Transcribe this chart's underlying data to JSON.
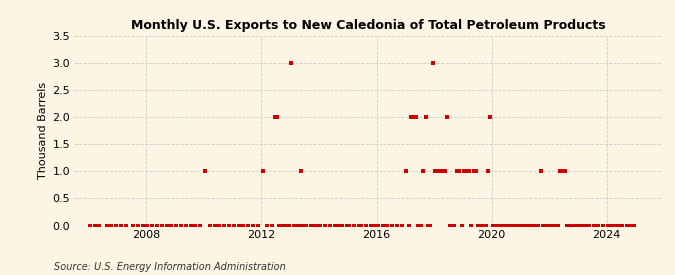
{
  "title": "Monthly U.S. Exports to New Caledonia of Total Petroleum Products",
  "ylabel": "Thousand Barrels",
  "source": "Source: U.S. Energy Information Administration",
  "ylim": [
    0,
    3.5
  ],
  "yticks": [
    0.0,
    0.5,
    1.0,
    1.5,
    2.0,
    2.5,
    3.0,
    3.5
  ],
  "xlim_start": 2005.5,
  "xlim_end": 2025.9,
  "xticks": [
    2008,
    2012,
    2016,
    2020,
    2024
  ],
  "marker_color": "#cc0000",
  "marker": "s",
  "markersize": 3.0,
  "background_color": "#fdf5e4",
  "grid_color": "#cccccc",
  "data_points": [
    [
      2006,
      1,
      0
    ],
    [
      2006,
      3,
      0
    ],
    [
      2006,
      5,
      0
    ],
    [
      2006,
      8,
      0
    ],
    [
      2006,
      10,
      0
    ],
    [
      2006,
      12,
      0
    ],
    [
      2007,
      2,
      0
    ],
    [
      2007,
      4,
      0
    ],
    [
      2007,
      7,
      0
    ],
    [
      2007,
      9,
      0
    ],
    [
      2007,
      11,
      0
    ],
    [
      2008,
      1,
      0
    ],
    [
      2008,
      3,
      0
    ],
    [
      2008,
      5,
      0
    ],
    [
      2008,
      7,
      0
    ],
    [
      2008,
      9,
      0
    ],
    [
      2008,
      11,
      0
    ],
    [
      2009,
      1,
      0
    ],
    [
      2009,
      3,
      0
    ],
    [
      2009,
      5,
      0
    ],
    [
      2009,
      7,
      0
    ],
    [
      2009,
      9,
      0
    ],
    [
      2009,
      11,
      0
    ],
    [
      2010,
      1,
      1
    ],
    [
      2010,
      3,
      0
    ],
    [
      2010,
      5,
      0
    ],
    [
      2010,
      7,
      0
    ],
    [
      2010,
      9,
      0
    ],
    [
      2010,
      11,
      0
    ],
    [
      2011,
      1,
      0
    ],
    [
      2011,
      3,
      0
    ],
    [
      2011,
      5,
      0
    ],
    [
      2011,
      7,
      0
    ],
    [
      2011,
      9,
      0
    ],
    [
      2011,
      11,
      0
    ],
    [
      2012,
      1,
      1
    ],
    [
      2012,
      3,
      0
    ],
    [
      2012,
      5,
      0
    ],
    [
      2012,
      6,
      2
    ],
    [
      2012,
      7,
      2
    ],
    [
      2012,
      8,
      0
    ],
    [
      2012,
      9,
      0
    ],
    [
      2012,
      10,
      0
    ],
    [
      2012,
      11,
      0
    ],
    [
      2012,
      12,
      0
    ],
    [
      2013,
      1,
      3
    ],
    [
      2013,
      2,
      0
    ],
    [
      2013,
      3,
      0
    ],
    [
      2013,
      4,
      0
    ],
    [
      2013,
      5,
      1
    ],
    [
      2013,
      6,
      0
    ],
    [
      2013,
      7,
      0
    ],
    [
      2013,
      9,
      0
    ],
    [
      2013,
      10,
      0
    ],
    [
      2013,
      11,
      0
    ],
    [
      2013,
      12,
      0
    ],
    [
      2014,
      1,
      0
    ],
    [
      2014,
      3,
      0
    ],
    [
      2014,
      5,
      0
    ],
    [
      2014,
      7,
      0
    ],
    [
      2014,
      9,
      0
    ],
    [
      2014,
      10,
      0
    ],
    [
      2014,
      12,
      0
    ],
    [
      2015,
      1,
      0
    ],
    [
      2015,
      3,
      0
    ],
    [
      2015,
      5,
      0
    ],
    [
      2015,
      6,
      0
    ],
    [
      2015,
      8,
      0
    ],
    [
      2015,
      10,
      0
    ],
    [
      2015,
      12,
      0
    ],
    [
      2016,
      1,
      0
    ],
    [
      2016,
      3,
      0
    ],
    [
      2016,
      5,
      0
    ],
    [
      2016,
      7,
      0
    ],
    [
      2016,
      9,
      0
    ],
    [
      2016,
      11,
      0
    ],
    [
      2017,
      1,
      1
    ],
    [
      2017,
      2,
      0
    ],
    [
      2017,
      3,
      2
    ],
    [
      2017,
      4,
      2
    ],
    [
      2017,
      5,
      2
    ],
    [
      2017,
      6,
      0
    ],
    [
      2017,
      7,
      0
    ],
    [
      2017,
      8,
      1
    ],
    [
      2017,
      9,
      2
    ],
    [
      2017,
      10,
      0
    ],
    [
      2017,
      11,
      0
    ],
    [
      2017,
      12,
      3
    ],
    [
      2018,
      1,
      1
    ],
    [
      2018,
      2,
      1
    ],
    [
      2018,
      3,
      1
    ],
    [
      2018,
      4,
      1
    ],
    [
      2018,
      5,
      1
    ],
    [
      2018,
      6,
      2
    ],
    [
      2018,
      7,
      0
    ],
    [
      2018,
      8,
      0
    ],
    [
      2018,
      9,
      0
    ],
    [
      2018,
      10,
      1
    ],
    [
      2018,
      11,
      1
    ],
    [
      2018,
      12,
      0
    ],
    [
      2019,
      1,
      1
    ],
    [
      2019,
      2,
      1
    ],
    [
      2019,
      3,
      1
    ],
    [
      2019,
      4,
      0
    ],
    [
      2019,
      5,
      1
    ],
    [
      2019,
      6,
      1
    ],
    [
      2019,
      7,
      0
    ],
    [
      2019,
      8,
      0
    ],
    [
      2019,
      9,
      0
    ],
    [
      2019,
      10,
      0
    ],
    [
      2019,
      11,
      1
    ],
    [
      2019,
      12,
      2
    ],
    [
      2020,
      1,
      0
    ],
    [
      2020,
      2,
      0
    ],
    [
      2020,
      3,
      0
    ],
    [
      2020,
      4,
      0
    ],
    [
      2020,
      5,
      0
    ],
    [
      2020,
      6,
      0
    ],
    [
      2020,
      7,
      0
    ],
    [
      2020,
      8,
      0
    ],
    [
      2020,
      9,
      0
    ],
    [
      2020,
      10,
      0
    ],
    [
      2020,
      11,
      0
    ],
    [
      2020,
      12,
      0
    ],
    [
      2021,
      1,
      0
    ],
    [
      2021,
      2,
      0
    ],
    [
      2021,
      3,
      0
    ],
    [
      2021,
      4,
      0
    ],
    [
      2021,
      5,
      0
    ],
    [
      2021,
      6,
      0
    ],
    [
      2021,
      7,
      0
    ],
    [
      2021,
      8,
      0
    ],
    [
      2021,
      9,
      1
    ],
    [
      2021,
      10,
      0
    ],
    [
      2021,
      11,
      0
    ],
    [
      2021,
      12,
      0
    ],
    [
      2022,
      1,
      0
    ],
    [
      2022,
      2,
      0
    ],
    [
      2022,
      3,
      0
    ],
    [
      2022,
      4,
      0
    ],
    [
      2022,
      5,
      1
    ],
    [
      2022,
      6,
      1
    ],
    [
      2022,
      7,
      1
    ],
    [
      2022,
      8,
      0
    ],
    [
      2022,
      9,
      0
    ],
    [
      2022,
      10,
      0
    ],
    [
      2022,
      11,
      0
    ],
    [
      2022,
      12,
      0
    ],
    [
      2023,
      1,
      0
    ],
    [
      2023,
      2,
      0
    ],
    [
      2023,
      3,
      0
    ],
    [
      2023,
      4,
      0
    ],
    [
      2023,
      5,
      0
    ],
    [
      2023,
      7,
      0
    ],
    [
      2023,
      9,
      0
    ],
    [
      2023,
      11,
      0
    ],
    [
      2024,
      1,
      0
    ],
    [
      2024,
      2,
      0
    ],
    [
      2024,
      3,
      0
    ],
    [
      2024,
      4,
      0
    ],
    [
      2024,
      5,
      0
    ],
    [
      2024,
      7,
      0
    ],
    [
      2024,
      9,
      0
    ],
    [
      2024,
      10,
      0
    ],
    [
      2024,
      11,
      0
    ],
    [
      2024,
      12,
      0
    ]
  ]
}
